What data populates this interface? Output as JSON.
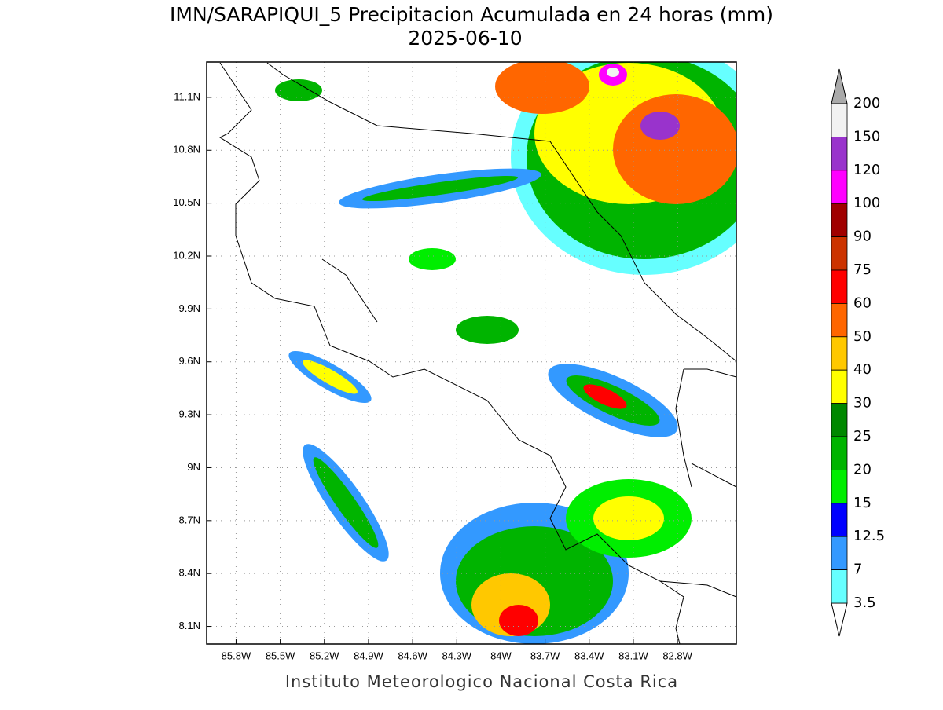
{
  "title": "IMN/SARAPIQUI_5 Precipitacion Acumulada en 24 horas (mm)",
  "subtitle": "2025-06-10",
  "footer": "Instituto Meteorologico Nacional Costa Rica",
  "map": {
    "lon_range": [
      -86.0,
      -82.4
    ],
    "lat_range": [
      8.0,
      11.3
    ],
    "grid": true,
    "lat_ticks": [
      {
        "value": 11.1,
        "label": "11.1N"
      },
      {
        "value": 10.8,
        "label": "10.8N"
      },
      {
        "value": 10.5,
        "label": "10.5N"
      },
      {
        "value": 10.2,
        "label": "10.2N"
      },
      {
        "value": 9.9,
        "label": "9.9N"
      },
      {
        "value": 9.6,
        "label": "9.6N"
      },
      {
        "value": 9.3,
        "label": "9.3N"
      },
      {
        "value": 9,
        "label": "9N"
      },
      {
        "value": 8.7,
        "label": "8.7N"
      },
      {
        "value": 8.4,
        "label": "8.4N"
      },
      {
        "value": 8.1,
        "label": "8.1N"
      }
    ],
    "lon_ticks": [
      {
        "value": -85.8,
        "label": "85.8W"
      },
      {
        "value": -85.5,
        "label": "85.5W"
      },
      {
        "value": -85.2,
        "label": "85.2W"
      },
      {
        "value": -84.9,
        "label": "84.9W"
      },
      {
        "value": -84.6,
        "label": "84.6W"
      },
      {
        "value": -84.3,
        "label": "84.3W"
      },
      {
        "value": -84,
        "label": "84W"
      },
      {
        "value": -83.7,
        "label": "83.7W"
      },
      {
        "value": -83.4,
        "label": "83.4W"
      },
      {
        "value": -83.1,
        "label": "83.1W"
      },
      {
        "value": -82.8,
        "label": "82.8W"
      }
    ]
  },
  "colorbar": {
    "levels": [
      200,
      150,
      120,
      100,
      90,
      75,
      60,
      50,
      40,
      30,
      25,
      20,
      15,
      12.5,
      7,
      3.5
    ],
    "colors": [
      "#f2f2f2",
      "#9933cc",
      "#ff00ff",
      "#a00000",
      "#cc3300",
      "#ff0000",
      "#ff6600",
      "#ffc800",
      "#ffff00",
      "#008800",
      "#00b400",
      "#00ee00",
      "#0000ff",
      "#3399ff",
      "#66ffff"
    ],
    "over_color": "#aaaaaa",
    "under_color": "#ffffff"
  }
}
